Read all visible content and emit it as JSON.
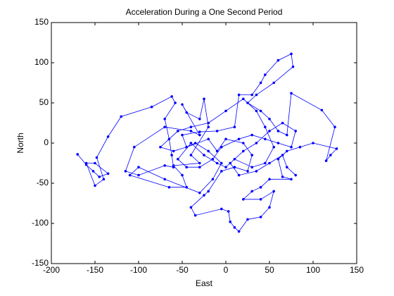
{
  "chart_data": {
    "type": "line",
    "title": "Acceleration During a One Second Period",
    "xlabel": "East",
    "ylabel": "North",
    "color": "#0000ff",
    "xlim": [
      -200,
      150
    ],
    "xticks": [
      -200,
      -150,
      -100,
      -50,
      0,
      50,
      100,
      150
    ],
    "ylim": [
      -150,
      150
    ],
    "yticks": [
      -150,
      -100,
      -50,
      0,
      50,
      100,
      150
    ],
    "x": [
      -170,
      -160,
      -152,
      -145,
      -135,
      -150,
      -160,
      -150,
      -140,
      -148,
      -135,
      -120,
      -85,
      -62,
      -58,
      -70,
      -65,
      -62,
      -60,
      -70,
      -100,
      -115,
      -105,
      -70,
      -40,
      -30,
      -50,
      -45,
      -30,
      -25,
      -20,
      -40,
      -30,
      -60,
      -50,
      -45,
      -65,
      -110,
      -100,
      -70,
      -30,
      -15,
      -5,
      -20,
      -35,
      -45,
      -50,
      -30,
      -10,
      10,
      15,
      30,
      40,
      45,
      60,
      75,
      77,
      55,
      35,
      25,
      40,
      50,
      60,
      70,
      75,
      110,
      125,
      115,
      120,
      127,
      100,
      85,
      70,
      60,
      65,
      75,
      50,
      40,
      30,
      20,
      40,
      55,
      50,
      40,
      25,
      15,
      10,
      5,
      3,
      -5,
      -35,
      -40,
      -25,
      -20,
      -5,
      10,
      25,
      30,
      20,
      0,
      -10,
      -20,
      -45,
      -60,
      -75,
      -55,
      -40,
      -20,
      0,
      20,
      35,
      45,
      55,
      45,
      30,
      10,
      0,
      -10,
      -25,
      -40,
      -55,
      -45,
      -30,
      -15,
      -5,
      15,
      30,
      45,
      60,
      75,
      80,
      65,
      50,
      35,
      20,
      5,
      15,
      35,
      50,
      65,
      70,
      80
    ],
    "values": [
      -14,
      -27,
      -35,
      -42,
      -38,
      -25,
      -25,
      -53,
      -45,
      -18,
      8,
      33,
      45,
      58,
      50,
      30,
      5,
      -15,
      -30,
      -28,
      -40,
      -35,
      -5,
      20,
      15,
      10,
      48,
      38,
      30,
      55,
      20,
      -15,
      -25,
      -28,
      -40,
      -55,
      -55,
      -40,
      -30,
      -45,
      -62,
      -45,
      -25,
      -10,
      0,
      -5,
      10,
      14,
      15,
      20,
      60,
      60,
      75,
      85,
      103,
      111,
      95,
      75,
      60,
      50,
      40,
      30,
      15,
      10,
      62,
      41,
      20,
      -22,
      -15,
      -7,
      0,
      -5,
      -10,
      -20,
      -42,
      -45,
      -45,
      -55,
      -60,
      -70,
      -70,
      -60,
      -80,
      -92,
      -95,
      -110,
      -105,
      -98,
      -85,
      -82,
      -90,
      -80,
      -65,
      -60,
      -35,
      -30,
      -35,
      -15,
      0,
      5,
      -10,
      5,
      -5,
      -10,
      -5,
      15,
      20,
      25,
      40,
      55,
      40,
      20,
      -5,
      -25,
      -30,
      -20,
      -30,
      -25,
      -15,
      0,
      -20,
      -30,
      -30,
      -20,
      -5,
      5,
      10,
      5,
      0,
      -5,
      15,
      25,
      15,
      0,
      -10,
      -25,
      -40,
      -35,
      -25,
      -15,
      -30,
      -40
    ]
  }
}
